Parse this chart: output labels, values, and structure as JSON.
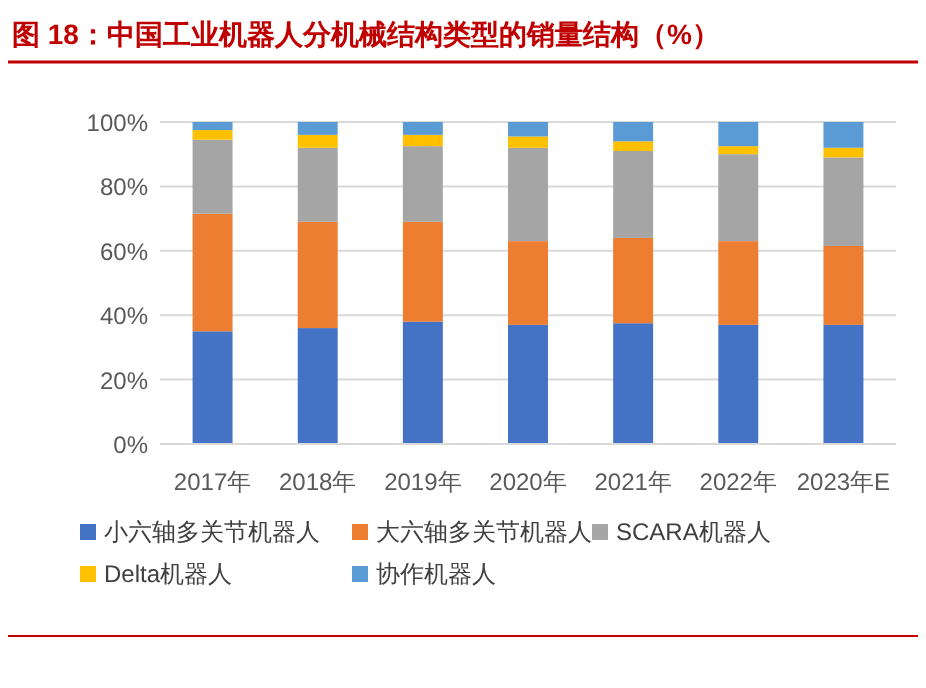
{
  "chart_data": {
    "type": "bar",
    "title": "图 18：中国工业机器人分机械结构类型的销量结构（%）",
    "stacked": true,
    "categories": [
      "2017年",
      "2018年",
      "2019年",
      "2020年",
      "2021年",
      "2022年",
      "2023年E"
    ],
    "series": [
      {
        "name": "小六轴多关节机器人",
        "color": "#4472c4",
        "values": [
          35,
          36,
          38,
          37,
          37.5,
          37,
          37
        ]
      },
      {
        "name": "大六轴多关节机器人",
        "color": "#ed7d31",
        "values": [
          36.5,
          33,
          31,
          26,
          26.5,
          26,
          24.5
        ]
      },
      {
        "name": "SCARA机器人",
        "color": "#a5a5a5",
        "values": [
          23,
          23,
          23.5,
          29,
          27,
          27,
          27.5
        ]
      },
      {
        "name": "Delta机器人",
        "color": "#ffc000",
        "values": [
          3,
          4,
          3.5,
          3.5,
          3,
          2.5,
          3
        ]
      },
      {
        "name": "协作机器人",
        "color": "#5b9bd5",
        "values": [
          2.5,
          4,
          4,
          4.5,
          6,
          7.5,
          8
        ]
      }
    ],
    "ylim": [
      0,
      100
    ],
    "yticks": [
      {
        "value": 0,
        "label": "0%"
      },
      {
        "value": 20,
        "label": "20%"
      },
      {
        "value": 40,
        "label": "40%"
      },
      {
        "value": 60,
        "label": "60%"
      },
      {
        "value": 80,
        "label": "80%"
      },
      {
        "value": 100,
        "label": "100%"
      }
    ],
    "grid": "y",
    "legend": "bottom"
  }
}
